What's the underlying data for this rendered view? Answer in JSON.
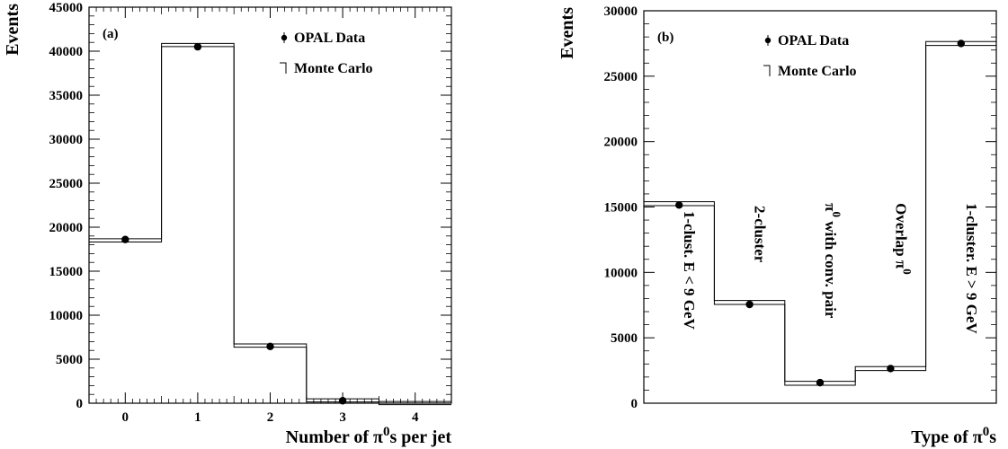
{
  "chart_data": [
    {
      "type": "bar",
      "panel_label": "(a)",
      "xlabel": "Number of π0s per jet",
      "xlabel_parts": {
        "pre": "Number of π",
        "sup": "0",
        "post": "s per jet"
      },
      "ylabel": "Events",
      "xlim": [
        -0.5,
        4.5
      ],
      "ylim": [
        0,
        45000
      ],
      "x_ticks": [
        "0",
        "1",
        "2",
        "3",
        "4"
      ],
      "y_ticks": [
        "0",
        "5000",
        "10000",
        "15000",
        "20000",
        "25000",
        "30000",
        "35000",
        "40000",
        "45000"
      ],
      "legend_position": "top-right",
      "series": [
        {
          "name": "OPAL Data",
          "marker": "point",
          "x": [
            0,
            1,
            2,
            3,
            4
          ],
          "values": [
            18600,
            40500,
            6450,
            280,
            10
          ]
        },
        {
          "name": "Monte Carlo",
          "marker": "histogram",
          "bin_edges": [
            -0.5,
            0.5,
            1.5,
            2.5,
            3.5,
            4.5
          ],
          "values": [
            18500,
            40700,
            6550,
            320,
            15
          ],
          "band": 180
        }
      ],
      "annotations": []
    },
    {
      "type": "bar",
      "panel_label": "(b)",
      "xlabel": "Type of π0s",
      "xlabel_parts": {
        "pre": "Type of π",
        "sup": "0",
        "post": "s"
      },
      "ylabel": "Events",
      "xlim": [
        0,
        5
      ],
      "ylim": [
        0,
        30000
      ],
      "x_ticks": [],
      "y_ticks": [
        "0",
        "5000",
        "10000",
        "15000",
        "20000",
        "25000",
        "30000"
      ],
      "legend_position": "top-left",
      "series": [
        {
          "name": "OPAL Data",
          "marker": "point",
          "x": [
            0.5,
            1.5,
            2.5,
            3.5,
            4.5
          ],
          "values": [
            15150,
            7550,
            1570,
            2650,
            27500
          ]
        },
        {
          "name": "Monte Carlo",
          "marker": "histogram",
          "bin_edges": [
            0,
            1,
            2,
            3,
            4,
            5
          ],
          "values": [
            15250,
            7700,
            1520,
            2650,
            27500
          ],
          "band": 150
        }
      ],
      "annotations": [
        {
          "label": "1-clust. E < 9 GeV",
          "pre": "1-clust. E < 9 GeV",
          "sup": "",
          "post": "",
          "bin": 0.5,
          "start_value": 14700
        },
        {
          "label": "2-cluster",
          "pre": "2-cluster",
          "sup": "",
          "post": "",
          "bin": 1.5,
          "start_value": 15100
        },
        {
          "label": "π0 with conv. pair",
          "pre": "π",
          "sup": "0",
          "post": " with conv. pair",
          "bin": 2.5,
          "start_value": 15300
        },
        {
          "label": "Overlap π0",
          "pre": "Overlap π",
          "sup": "0",
          "post": "",
          "bin": 3.5,
          "start_value": 15300
        },
        {
          "label": "1-cluster. E > 9 GeV",
          "pre": "1-cluster. E > 9 GeV",
          "sup": "",
          "post": "",
          "bin": 4.5,
          "start_value": 15300
        }
      ]
    }
  ]
}
